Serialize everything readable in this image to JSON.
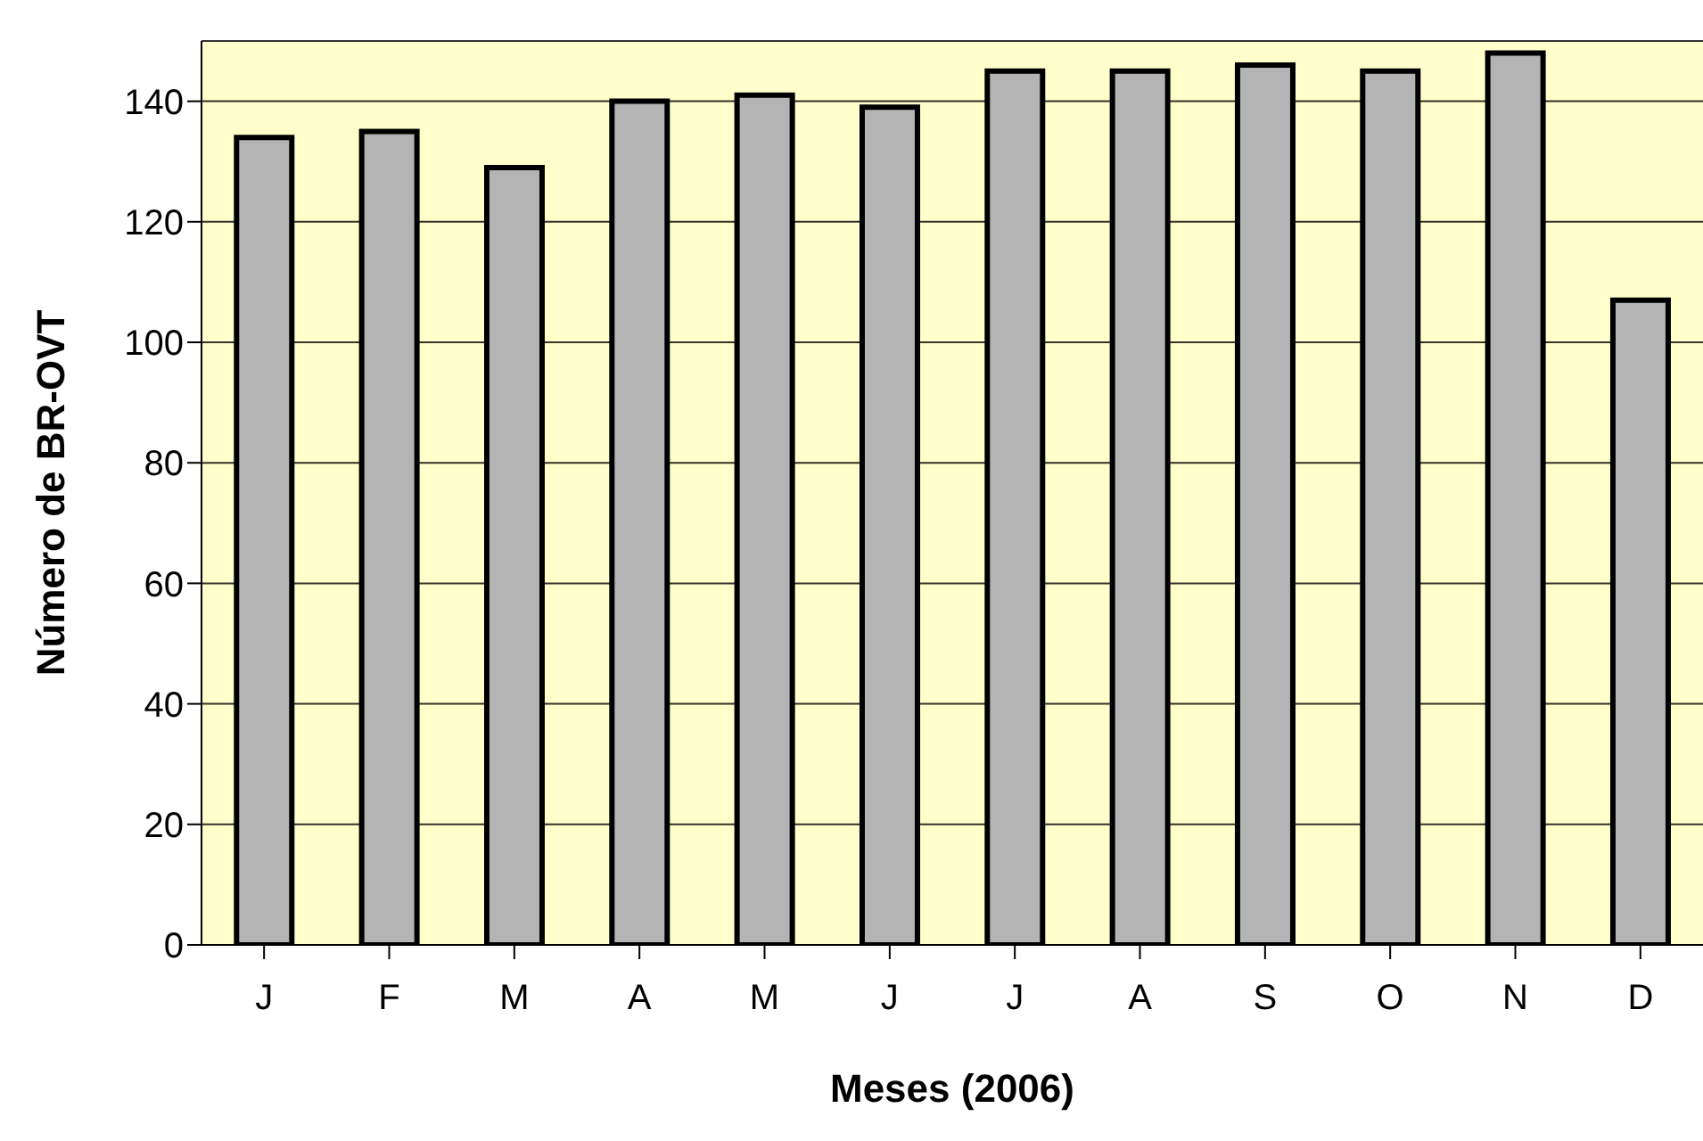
{
  "chart_data": {
    "type": "bar",
    "xlabel": "Meses (2006)",
    "ylabel": "Número de BR-OVT",
    "categories": [
      "J",
      "F",
      "M",
      "A",
      "M",
      "J",
      "J",
      "A",
      "S",
      "O",
      "N",
      "D"
    ],
    "values": [
      134,
      135,
      129,
      140,
      141,
      139,
      145,
      145,
      146,
      145,
      148,
      107
    ],
    "color": "#b4b4b4",
    "ylim": [
      0,
      150
    ],
    "yticks": [
      0,
      20,
      40,
      60,
      80,
      100,
      120,
      140
    ],
    "grid": "y"
  }
}
